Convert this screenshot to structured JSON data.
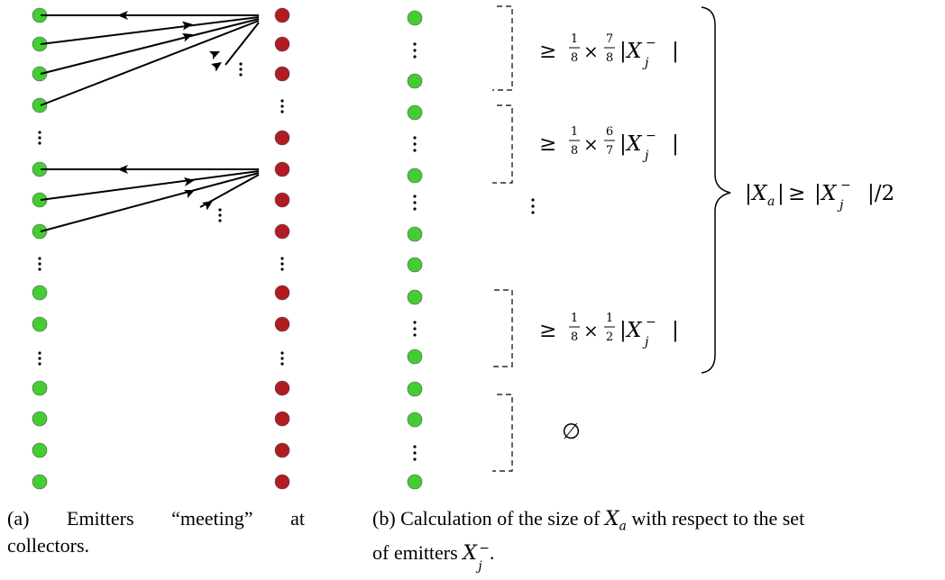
{
  "panel_a": {
    "emitter_color": "#44cc33",
    "collector_color": "#b01c22",
    "caption": {
      "label": "(a)",
      "word1": "Emitters",
      "word2": "“meeting”",
      "word3": "at",
      "line2": "collectors."
    }
  },
  "panel_b": {
    "emitter_color": "#44cc33",
    "bound_1": "≥ 1/8 × 7/8 |X_j^−|",
    "bound_2": "≥ 1/8 × 6/7 |X_j^−|",
    "bound_3": "≥ 1/8 × 1/2 |X_j^−|",
    "empty_set": "∅",
    "total": "|X_a| ≥ |X_j^−|/2",
    "caption": {
      "prefix": "(b) Calculation of the size of",
      "mid": "with respect to the set",
      "line2_prefix": "of emitters",
      "line2_suffix": "."
    }
  }
}
